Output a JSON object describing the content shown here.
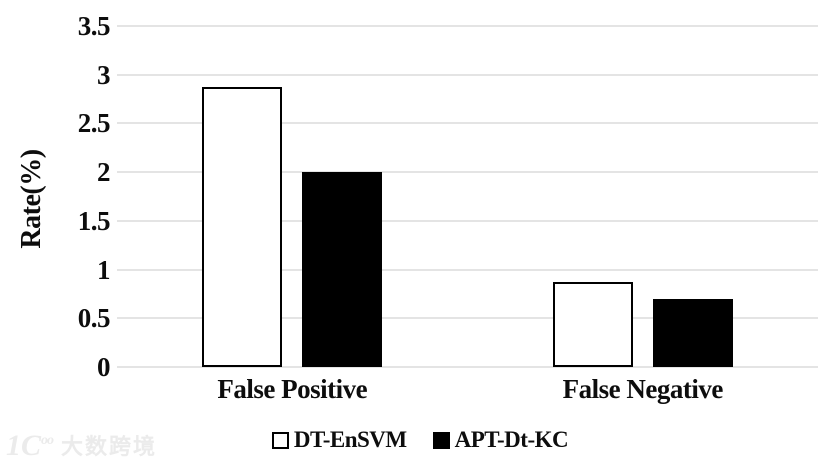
{
  "chart_data": {
    "type": "bar",
    "title": "",
    "categories": [
      "False Positive",
      "False Negative"
    ],
    "series": [
      {
        "name": "DT-EnSVM",
        "values": [
          2.87,
          0.87
        ],
        "fill": "#ffffff",
        "border": "#000000"
      },
      {
        "name": "APT-Dt-KC",
        "values": [
          2.0,
          0.7
        ],
        "fill": "#000000",
        "border": "#000000"
      }
    ],
    "xlabel": "",
    "ylabel": "Rate(%)",
    "ylim": [
      0,
      3.5
    ],
    "yticks": [
      "0",
      "0.5",
      "1",
      "1.5",
      "2",
      "2.5",
      "3",
      "3.5"
    ],
    "grid": true,
    "legend_position": "bottom"
  },
  "watermark": {
    "logo_main": "1C",
    "logo_sup": "oo",
    "text": "大数跨境"
  },
  "colors": {
    "background": "#ffffff",
    "grid": "#e4e4e4",
    "axis_text": "#0d0d0d",
    "watermark": "#ebebeb"
  }
}
